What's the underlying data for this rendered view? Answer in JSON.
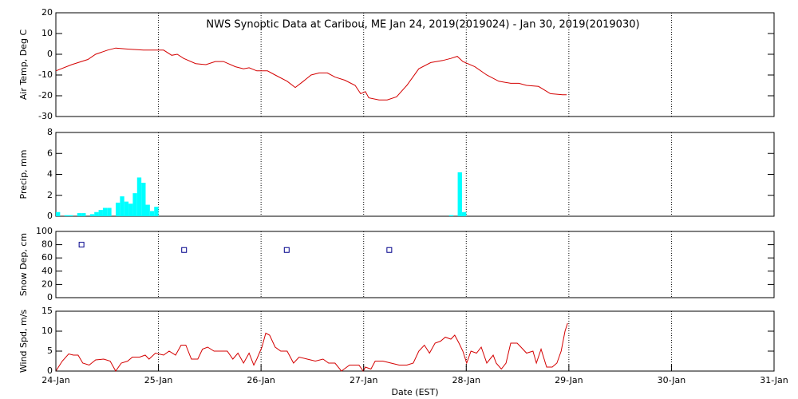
{
  "chart_data": [
    {
      "type": "line",
      "title": "NWS Synoptic Data at Caribou, ME   Jan 24, 2019(2019024) - Jan 30, 2019(2019030)",
      "ylabel": "Air Temp, Deg C",
      "color": "#d40000",
      "x": [
        0,
        3.7,
        7.5,
        9.3,
        12.1,
        14,
        16.8,
        20.5,
        25.2,
        27.1,
        28.4,
        29.9,
        32.7,
        35.1,
        37.3,
        39.2,
        42,
        43.9,
        45.2,
        47,
        49.5,
        51.3,
        54.1,
        56,
        57.9,
        59.7,
        61.6,
        63.5,
        65.3,
        67.6,
        70,
        71.3,
        72.4,
        73.2,
        75.6,
        77.5,
        79.7,
        82.1,
        84.9,
        87.7,
        90.5,
        92.4,
        93.9,
        95.2,
        98,
        100.8,
        103.6,
        106.4,
        108.3,
        110.1,
        112.9,
        115.7,
        118.5,
        119.5
      ],
      "values": [
        -8,
        -5,
        -2.5,
        0,
        2,
        3,
        2.5,
        2,
        2,
        -0.5,
        0,
        -2,
        -4.5,
        -5,
        -3.5,
        -3.5,
        -6,
        -7,
        -6.5,
        -8,
        -8,
        -10,
        -13,
        -16,
        -13,
        -10,
        -9,
        -9,
        -11,
        -12.5,
        -15,
        -19,
        -18,
        -21,
        -22,
        -22,
        -20.5,
        -15,
        -7,
        -4,
        -3,
        -2,
        -1,
        -3.5,
        -6,
        -10,
        -13,
        -14,
        -14,
        -15,
        -15.5,
        -19,
        -19.5,
        -19.5
      ],
      "ylim": [
        -30,
        20
      ],
      "yticks": [
        -30,
        -20,
        -10,
        0,
        10,
        20
      ],
      "grid": true
    },
    {
      "type": "bar",
      "ylabel": "Precip, mm",
      "color": "#00ffff",
      "x": [
        0,
        2,
        3,
        5,
        6,
        8,
        9,
        10,
        11,
        12,
        14,
        15,
        16,
        17,
        18,
        19,
        20,
        21,
        22,
        23,
        92,
        94,
        95
      ],
      "values": [
        0.4,
        0.1,
        0.1,
        0.3,
        0.3,
        0.2,
        0.4,
        0.6,
        0.8,
        0.8,
        1.3,
        1.9,
        1.4,
        1.2,
        2.2,
        3.7,
        3.2,
        1.1,
        0.5,
        0.9,
        0.1,
        4.2,
        0.4
      ],
      "ylim": [
        0,
        8
      ],
      "yticks": [
        0,
        2,
        4,
        6,
        8
      ],
      "grid": true
    },
    {
      "type": "scatter",
      "ylabel": "Snow Dep, cm",
      "color": "#00008b",
      "x": [
        6,
        30,
        54,
        78
      ],
      "values": [
        80,
        72,
        72,
        72
      ],
      "ylim": [
        0,
        100
      ],
      "yticks": [
        0,
        20,
        40,
        60,
        80,
        100
      ],
      "grid": true
    },
    {
      "type": "line",
      "ylabel": "Wind Spd, m/s",
      "xlabel": "Date (EST)",
      "color": "#d40000",
      "x": [
        0,
        1.5,
        3,
        4.1,
        5.2,
        6.3,
        7.8,
        9.3,
        11.2,
        12.7,
        14,
        15.3,
        16.8,
        17.9,
        19.6,
        20.9,
        21.8,
        23.3,
        25.2,
        26.5,
        28,
        29.3,
        30.4,
        31.7,
        33.2,
        34.3,
        35.5,
        37,
        38.8,
        40.1,
        41.4,
        42.6,
        43.9,
        45.2,
        46.3,
        47,
        48.2,
        49.1,
        50,
        51.3,
        52.6,
        54.1,
        55.6,
        56.9,
        58.8,
        60.7,
        62.5,
        63.8,
        65.3,
        66.8,
        68.7,
        70.9,
        71.9,
        72.4,
        73.7,
        74.7,
        76.5,
        78.4,
        80.3,
        82.1,
        83.6,
        84.9,
        86.2,
        87.4,
        88.7,
        90,
        91.1,
        92.4,
        93.3,
        94.3,
        95.2,
        96.1,
        97.1,
        98.4,
        99.5,
        100.8,
        102.3,
        103,
        104.2,
        105.3,
        106.4,
        107.9,
        108.8,
        110.1,
        111.6,
        112.4,
        113.5,
        114.8,
        116.1,
        117.2,
        118.2,
        119.1,
        119.7
      ],
      "values": [
        0,
        2.5,
        4.3,
        4,
        4,
        2,
        1.5,
        2.8,
        3,
        2.5,
        0,
        2,
        2.5,
        3.5,
        3.5,
        4,
        3,
        4.5,
        4,
        5,
        4,
        6.5,
        6.5,
        3,
        3,
        5.5,
        6,
        5,
        5,
        5,
        3,
        4.5,
        2,
        4.5,
        1.5,
        3,
        6,
        9.5,
        9,
        6,
        5,
        5,
        2,
        3.5,
        3,
        2.5,
        3,
        2,
        2,
        0,
        1.5,
        1.5,
        0,
        1,
        0.5,
        2.5,
        2.5,
        2,
        1.5,
        1.5,
        2,
        5,
        6.5,
        4.5,
        7,
        7.5,
        8.5,
        8,
        9,
        7,
        5,
        2,
        5,
        4.5,
        6,
        2,
        4,
        2,
        0.5,
        2,
        7,
        7,
        6,
        4.5,
        5,
        2,
        5.5,
        1,
        1,
        2,
        5,
        10,
        12
      ],
      "ylim": [
        0,
        15
      ],
      "yticks": [
        0,
        5,
        10,
        15
      ],
      "grid": true,
      "xlim": [
        0,
        168
      ],
      "xticks": [
        {
          "value": 0,
          "label": "24-Jan"
        },
        {
          "value": 24,
          "label": "25-Jan"
        },
        {
          "value": 48,
          "label": "26-Jan"
        },
        {
          "value": 72,
          "label": "27-Jan"
        },
        {
          "value": 96,
          "label": "28-Jan"
        },
        {
          "value": 120,
          "label": "29-Jan"
        },
        {
          "value": 144,
          "label": "30-Jan"
        },
        {
          "value": 168,
          "label": "31-Jan"
        }
      ]
    }
  ]
}
